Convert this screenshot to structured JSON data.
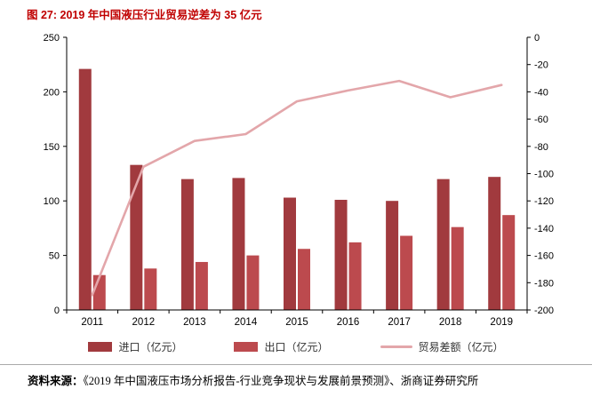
{
  "title": "图 27: 2019 年中国液压行业贸易逆差为 35 亿元",
  "source": {
    "label": "资料来源：",
    "text": "《2019 年中国液压市场分析报告-行业竞争现状与发展前景预测》、浙商证券研究所"
  },
  "colors": {
    "title": "#c00000",
    "import_bar": "#a13a3e",
    "export_bar": "#bc4a4e",
    "line": "#e3a6aa",
    "axis": "#000000",
    "tick_text": "#000000"
  },
  "chart_data": {
    "type": "bar",
    "subtype": "grouped-bar-with-line-combo",
    "categories": [
      "2011",
      "2012",
      "2013",
      "2014",
      "2015",
      "2016",
      "2017",
      "2018",
      "2019"
    ],
    "series": [
      {
        "name": "进口（亿元）",
        "type": "bar",
        "axis": "left",
        "values": [
          221,
          133,
          120,
          121,
          103,
          101,
          100,
          120,
          122
        ]
      },
      {
        "name": "出口（亿元）",
        "type": "bar",
        "axis": "left",
        "values": [
          32,
          38,
          44,
          50,
          56,
          62,
          68,
          76,
          87
        ]
      },
      {
        "name": "贸易差额（亿元）",
        "type": "line",
        "axis": "right",
        "values": [
          -189,
          -95,
          -76,
          -71,
          -47,
          -39,
          -32,
          -44,
          -35
        ]
      }
    ],
    "left_axis": {
      "min": 0,
      "max": 250,
      "step": 50,
      "ticks": [
        0,
        50,
        100,
        150,
        200,
        250
      ]
    },
    "right_axis": {
      "min": -200,
      "max": 0,
      "step": 20,
      "ticks": [
        0,
        -20,
        -40,
        -60,
        -80,
        -100,
        -120,
        -140,
        -160,
        -180,
        -200
      ]
    },
    "grid": false,
    "legend_position": "bottom"
  }
}
